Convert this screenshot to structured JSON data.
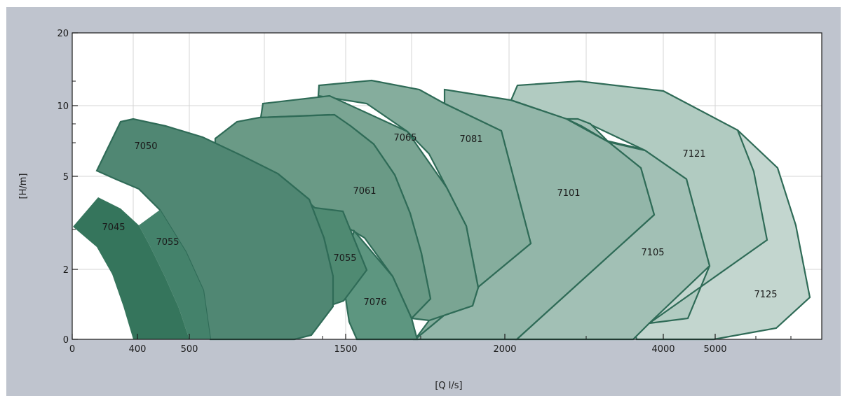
{
  "chart_data": {
    "type": "area",
    "title": "",
    "xlabel": "[Q l/s]",
    "ylabel": "[H/m]",
    "x_ticks": [
      "0",
      "400",
      "500",
      "1500",
      "2000",
      "4000",
      "5000"
    ],
    "y_ticks": [
      "0",
      "2",
      "5",
      "10",
      "20"
    ],
    "grid": true,
    "series": [
      {
        "label": "7045",
        "color": "#35755c"
      },
      {
        "label": "7055",
        "color": "#44826b"
      },
      {
        "label": "7050",
        "color": "#508773"
      },
      {
        "label": "7055",
        "color": "#4f8a72"
      },
      {
        "label": "7076",
        "color": "#5d9680"
      },
      {
        "label": "7061",
        "color": "#6a9a86"
      },
      {
        "label": "7065",
        "color": "#7aa593"
      },
      {
        "label": "7081",
        "color": "#85ad9d"
      },
      {
        "label": "7101",
        "color": "#93b6a9"
      },
      {
        "label": "7105",
        "color": "#a2c0b5"
      },
      {
        "label": "7121",
        "color": "#b1cbc1"
      },
      {
        "label": "7125",
        "color": "#c3d6cf"
      }
    ]
  }
}
